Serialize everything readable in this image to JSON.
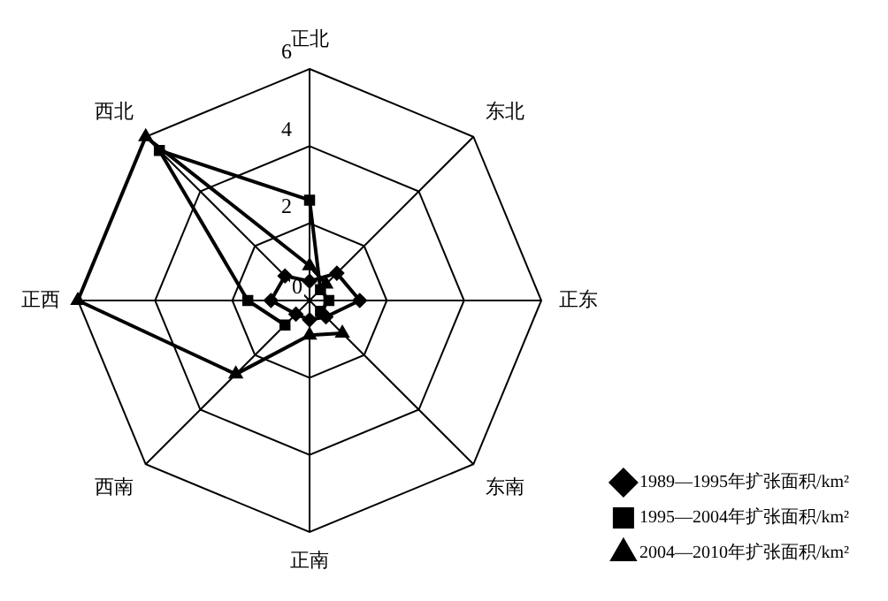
{
  "chart_data": {
    "type": "radar",
    "categories": [
      "正北",
      "东北",
      "正东",
      "东南",
      "正南",
      "西南",
      "正西",
      "西北"
    ],
    "series": [
      {
        "name": "1989—1995年扩张面积/km²",
        "color": "#000000",
        "marker": "diamond",
        "values": [
          0.5,
          1.0,
          1.3,
          0.6,
          0.5,
          0.5,
          1.0,
          0.9
        ]
      },
      {
        "name": "1995—2004年扩张面积/km²",
        "color": "#000000",
        "marker": "square",
        "values": [
          2.6,
          0.4,
          0.5,
          0.4,
          null,
          0.9,
          1.6,
          5.5
        ]
      },
      {
        "name": "2004—2010年扩张面积/km²",
        "color": "#000000",
        "marker": "triangle",
        "values": [
          0.9,
          0.6,
          null,
          1.2,
          0.9,
          2.7,
          6,
          6
        ]
      }
    ],
    "ylim": [
      0,
      6
    ],
    "yticks": [
      0,
      2,
      4,
      6
    ],
    "grid": true,
    "legend": "bottom right"
  }
}
